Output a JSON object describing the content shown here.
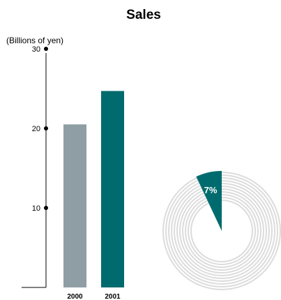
{
  "chart_data": {
    "type": "bar",
    "title": "Sales",
    "ylabel": "(Billions of yen)",
    "ylim": [
      0,
      30
    ],
    "yticks": [
      10,
      20,
      30
    ],
    "categories": [
      "2000",
      "2001"
    ],
    "values": [
      20.5,
      24.7
    ],
    "bar_colors": [
      "#8e9ea4",
      "#006b6e"
    ],
    "growth": {
      "label": "7%",
      "value": 7,
      "color": "#006b6e",
      "ring_color": "#dcdcdc"
    }
  }
}
